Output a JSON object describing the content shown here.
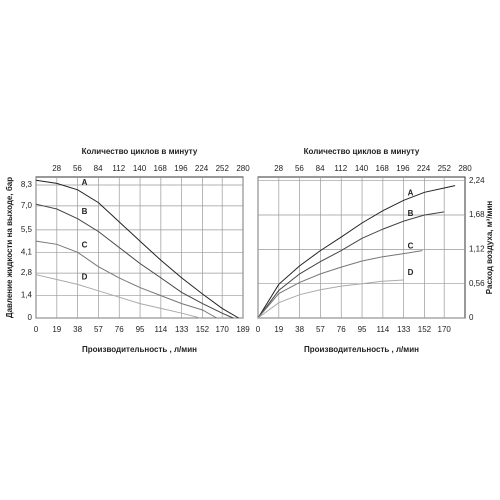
{
  "chart_data": [
    {
      "type": "line",
      "x2label": "Количество циклов в минуту",
      "xlabel": "Производительность , л/мин",
      "ylabel": "Давление жидкости на выходе, бар",
      "xlim": [
        0,
        189
      ],
      "xticks": [
        0,
        19,
        38,
        57,
        76,
        95,
        114,
        133,
        152,
        170,
        189
      ],
      "x2lim": [
        0,
        280
      ],
      "x2ticks": [
        28,
        56,
        84,
        112,
        140,
        168,
        196,
        224,
        252,
        280
      ],
      "ylim": [
        0,
        8.8
      ],
      "yticks": [
        0,
        {
          "value": 1.4,
          "label": "1,4"
        },
        {
          "value": 2.8,
          "label": "2,8"
        },
        {
          "value": 4.1,
          "label": "4,1"
        },
        {
          "value": 5.5,
          "label": "5,5"
        },
        {
          "value": 7.0,
          "label": "7,0"
        },
        {
          "value": 8.3,
          "label": "8,3"
        }
      ],
      "grid": true,
      "series": [
        {
          "name": "A",
          "color": "#222222",
          "x": [
            0,
            19,
            38,
            57,
            76,
            95,
            114,
            133,
            152,
            170,
            185
          ],
          "values": [
            8.6,
            8.4,
            8.0,
            7.2,
            6.0,
            4.8,
            3.6,
            2.5,
            1.5,
            0.6,
            0
          ]
        },
        {
          "name": "B",
          "color": "#444444",
          "x": [
            0,
            19,
            38,
            57,
            76,
            95,
            114,
            133,
            152,
            170,
            180
          ],
          "values": [
            7.1,
            6.8,
            6.2,
            5.4,
            4.4,
            3.4,
            2.5,
            1.6,
            0.9,
            0.3,
            0
          ]
        },
        {
          "name": "C",
          "color": "#777777",
          "x": [
            0,
            19,
            38,
            57,
            76,
            95,
            114,
            133,
            152,
            165
          ],
          "values": [
            4.8,
            4.6,
            4.1,
            3.2,
            2.5,
            1.9,
            1.4,
            0.9,
            0.5,
            0
          ]
        },
        {
          "name": "D",
          "color": "#aaaaaa",
          "x": [
            0,
            19,
            38,
            57,
            76,
            95,
            114,
            133,
            150
          ],
          "values": [
            2.7,
            2.4,
            2.1,
            1.7,
            1.3,
            0.9,
            0.6,
            0.3,
            0
          ]
        }
      ]
    },
    {
      "type": "line",
      "x2label": "Количество циклов в минуту",
      "xlabel": "Производительность , л/мин",
      "ylabel": "Расход воздуха, м³/мин",
      "xlim": [
        0,
        189
      ],
      "xticks": [
        0,
        19,
        38,
        57,
        76,
        95,
        114,
        133,
        152,
        170
      ],
      "x2lim": [
        0,
        280
      ],
      "x2ticks": [
        28,
        56,
        84,
        112,
        140,
        168,
        196,
        224,
        252,
        280
      ],
      "ylim": [
        0,
        2.3
      ],
      "yticks": [
        0,
        {
          "value": 0.56,
          "label": "0,56"
        },
        {
          "value": 1.12,
          "label": "1,12"
        },
        {
          "value": 1.68,
          "label": "1,68"
        },
        {
          "value": 2.24,
          "label": "2,24"
        }
      ],
      "grid": true,
      "series": [
        {
          "name": "A",
          "color": "#222222",
          "x": [
            0,
            19,
            38,
            57,
            76,
            95,
            114,
            133,
            152,
            170,
            180
          ],
          "values": [
            0,
            0.55,
            0.85,
            1.1,
            1.32,
            1.55,
            1.75,
            1.92,
            2.05,
            2.12,
            2.16
          ]
        },
        {
          "name": "B",
          "color": "#444444",
          "x": [
            0,
            19,
            38,
            57,
            76,
            95,
            114,
            133,
            152,
            170
          ],
          "values": [
            0,
            0.45,
            0.72,
            0.92,
            1.1,
            1.3,
            1.45,
            1.58,
            1.68,
            1.73
          ]
        },
        {
          "name": "C",
          "color": "#777777",
          "x": [
            0,
            19,
            38,
            57,
            76,
            95,
            114,
            133,
            150
          ],
          "values": [
            0,
            0.4,
            0.58,
            0.72,
            0.83,
            0.93,
            1.0,
            1.05,
            1.1
          ]
        },
        {
          "name": "D",
          "color": "#aaaaaa",
          "x": [
            0,
            19,
            38,
            57,
            76,
            95,
            114,
            133
          ],
          "values": [
            0,
            0.25,
            0.38,
            0.46,
            0.52,
            0.56,
            0.6,
            0.62
          ]
        }
      ]
    }
  ]
}
